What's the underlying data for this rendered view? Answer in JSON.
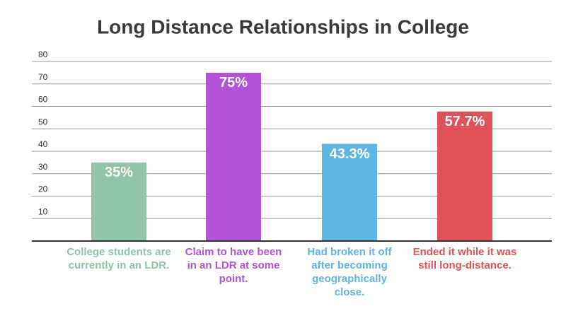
{
  "chart_data": {
    "type": "bar",
    "title": "Long Distance Relationships in College",
    "categories": [
      "College students are currently in an LDR.",
      "Claim to have been in an LDR at some point.",
      "Had broken it off after becoming geographically close.",
      "Ended it while it was still long-distance."
    ],
    "values": [
      35,
      75,
      43.3,
      57.7
    ],
    "value_labels": [
      "35%",
      "75%",
      "43.3%",
      "57.7%"
    ],
    "colors": [
      "#8fc4a6",
      "#b152d8",
      "#5fb4e2",
      "#e0525a"
    ],
    "ylim": [
      0,
      80
    ],
    "yticks": [
      10,
      20,
      30,
      40,
      50,
      60,
      70,
      80
    ],
    "grid": true
  }
}
